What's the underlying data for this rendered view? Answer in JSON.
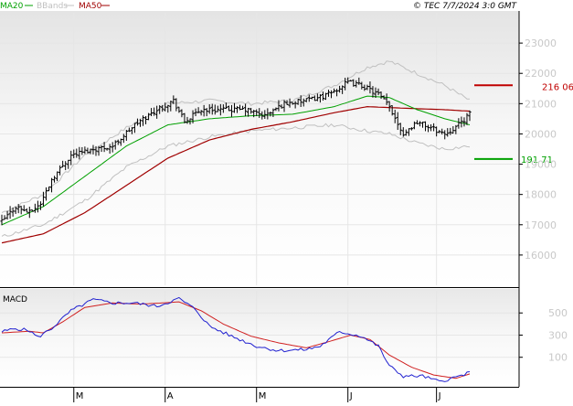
{
  "header": {
    "legend": [
      {
        "label": "MA20",
        "color": "#00a000"
      },
      {
        "label": "BBands",
        "color": "#c0c0c0"
      },
      {
        "label": "MA50",
        "color": "#a00000"
      }
    ],
    "source_text": "© TEC 7/7/2024 3:0 GMT"
  },
  "colors": {
    "price": "#000000",
    "ma20": "#00a000",
    "ma50": "#a00000",
    "bbands": "#c0c0c0",
    "macd": "#2020d0",
    "signal": "#d02020",
    "grid": "#e6e6e6",
    "axis_text": "#c8c8c8",
    "bg_top": "#e4e4e4"
  },
  "chart_data": [
    {
      "type": "ohlc",
      "name": "price",
      "ylim": [
        15000,
        24000
      ],
      "y_ticks": [
        16000,
        17000,
        18000,
        19000,
        20000,
        21000,
        22000,
        23000
      ],
      "y_tick_labels": [
        "16000",
        "17000",
        "18000",
        "19000",
        "20000",
        "21000",
        "22000",
        "23000"
      ],
      "x_labels": [
        "M",
        "A",
        "M",
        "J",
        "J"
      ],
      "x_label_positions": [
        26,
        59,
        92,
        125,
        157
      ],
      "n_bars": 170,
      "close_anchors": [
        [
          0,
          17100
        ],
        [
          5,
          17600
        ],
        [
          10,
          17400
        ],
        [
          14,
          17700
        ],
        [
          18,
          18500
        ],
        [
          25,
          19300
        ],
        [
          33,
          19500
        ],
        [
          40,
          19600
        ],
        [
          48,
          20300
        ],
        [
          56,
          20800
        ],
        [
          62,
          21100
        ],
        [
          66,
          20400
        ],
        [
          72,
          20800
        ],
        [
          80,
          20800
        ],
        [
          88,
          20800
        ],
        [
          95,
          20600
        ],
        [
          102,
          21000
        ],
        [
          110,
          21100
        ],
        [
          118,
          21300
        ],
        [
          125,
          21700
        ],
        [
          130,
          21600
        ],
        [
          136,
          21300
        ],
        [
          140,
          20900
        ],
        [
          145,
          20000
        ],
        [
          150,
          20400
        ],
        [
          155,
          20200
        ],
        [
          160,
          20000
        ],
        [
          165,
          20300
        ],
        [
          169,
          20650
        ]
      ],
      "ma20_anchors": [
        [
          0,
          17000
        ],
        [
          15,
          17600
        ],
        [
          30,
          18600
        ],
        [
          45,
          19600
        ],
        [
          60,
          20300
        ],
        [
          75,
          20500
        ],
        [
          90,
          20600
        ],
        [
          105,
          20650
        ],
        [
          120,
          20900
        ],
        [
          132,
          21250
        ],
        [
          140,
          21200
        ],
        [
          150,
          20800
        ],
        [
          160,
          20500
        ],
        [
          169,
          20300
        ]
      ],
      "ma50_anchors": [
        [
          0,
          16400
        ],
        [
          15,
          16700
        ],
        [
          30,
          17400
        ],
        [
          45,
          18300
        ],
        [
          60,
          19200
        ],
        [
          75,
          19800
        ],
        [
          90,
          20150
        ],
        [
          105,
          20400
        ],
        [
          120,
          20700
        ],
        [
          132,
          20900
        ],
        [
          145,
          20850
        ],
        [
          160,
          20800
        ],
        [
          169,
          20750
        ]
      ],
      "bb_upper_anchors": [
        [
          0,
          17400
        ],
        [
          15,
          18000
        ],
        [
          30,
          19300
        ],
        [
          45,
          20200
        ],
        [
          60,
          21000
        ],
        [
          75,
          21100
        ],
        [
          90,
          21000
        ],
        [
          105,
          21100
        ],
        [
          120,
          21600
        ],
        [
          132,
          22200
        ],
        [
          140,
          22400
        ],
        [
          150,
          22000
        ],
        [
          160,
          21600
        ],
        [
          169,
          21100
        ]
      ],
      "bb_lower_anchors": [
        [
          0,
          16600
        ],
        [
          15,
          17000
        ],
        [
          30,
          17800
        ],
        [
          45,
          18900
        ],
        [
          60,
          19600
        ],
        [
          75,
          19900
        ],
        [
          90,
          20100
        ],
        [
          105,
          20200
        ],
        [
          120,
          20300
        ],
        [
          132,
          20100
        ],
        [
          140,
          20000
        ],
        [
          150,
          19700
        ],
        [
          160,
          19500
        ],
        [
          169,
          19600
        ]
      ],
      "levels": [
        {
          "label": "216 06",
          "value": 21606,
          "color": "#c00000"
        },
        {
          "label": "191 71",
          "value": 19171,
          "color": "#00a000"
        }
      ]
    },
    {
      "type": "line",
      "name": "MACD",
      "title": "MACD",
      "ylim": [
        -150,
        700
      ],
      "y_ticks": [
        100,
        300,
        500
      ],
      "y_tick_labels": [
        "100",
        "300",
        "500"
      ],
      "series": [
        {
          "name": "MACD",
          "anchors": [
            [
              0,
              330
            ],
            [
              5,
              360
            ],
            [
              10,
              340
            ],
            [
              13,
              280
            ],
            [
              18,
              360
            ],
            [
              25,
              520
            ],
            [
              33,
              620
            ],
            [
              40,
              590
            ],
            [
              48,
              590
            ],
            [
              56,
              560
            ],
            [
              64,
              630
            ],
            [
              70,
              530
            ],
            [
              75,
              380
            ],
            [
              83,
              290
            ],
            [
              92,
              200
            ],
            [
              100,
              160
            ],
            [
              110,
              170
            ],
            [
              115,
              200
            ],
            [
              122,
              330
            ],
            [
              130,
              290
            ],
            [
              136,
              200
            ],
            [
              140,
              20
            ],
            [
              145,
              -70
            ],
            [
              152,
              -70
            ],
            [
              158,
              -120
            ],
            [
              164,
              -80
            ],
            [
              169,
              -40
            ]
          ]
        },
        {
          "name": "signal",
          "anchors": [
            [
              0,
              320
            ],
            [
              10,
              335
            ],
            [
              15,
              320
            ],
            [
              22,
              420
            ],
            [
              30,
              550
            ],
            [
              40,
              590
            ],
            [
              50,
              580
            ],
            [
              58,
              590
            ],
            [
              64,
              600
            ],
            [
              72,
              520
            ],
            [
              80,
              400
            ],
            [
              90,
              290
            ],
            [
              100,
              230
            ],
            [
              110,
              185
            ],
            [
              118,
              240
            ],
            [
              126,
              300
            ],
            [
              133,
              260
            ],
            [
              140,
              120
            ],
            [
              148,
              10
            ],
            [
              156,
              -60
            ],
            [
              164,
              -90
            ],
            [
              169,
              -50
            ]
          ]
        }
      ]
    }
  ]
}
